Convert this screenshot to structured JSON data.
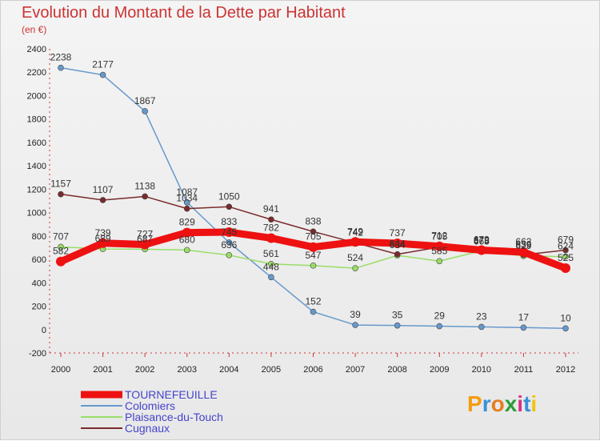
{
  "title": "Evolution du Montant de la Dette par Habitant",
  "subtitle": "(en €)",
  "logo_text": "Proxiti",
  "chart_data": {
    "type": "line",
    "x": [
      "2000",
      "2001",
      "2002",
      "2003",
      "2004",
      "2005",
      "2006",
      "2007",
      "2008",
      "2009",
      "2010",
      "2011",
      "2012"
    ],
    "ylim": [
      -200,
      2400
    ],
    "yticks": [
      -200,
      0,
      200,
      400,
      600,
      800,
      1000,
      1200,
      1400,
      1600,
      1800,
      2000,
      2200,
      2400
    ],
    "grid": false,
    "legend_position": "bottom-left",
    "series": [
      {
        "name": "TOURNEFEUILLE",
        "color": "#ee1111",
        "values": [
          582,
          739,
          727,
          829,
          833,
          782,
          705,
          749,
          737,
          712,
          679,
          662,
          525
        ]
      },
      {
        "name": "Colomiers",
        "color": "#6699cc",
        "values": [
          2238,
          2177,
          1867,
          1087,
          745,
          448,
          152,
          39,
          35,
          29,
          23,
          17,
          10
        ]
      },
      {
        "name": "Plaisance-du-Touch",
        "color": "#99dd66",
        "values": [
          707,
          689,
          687,
          680,
          636,
          561,
          547,
          524,
          634,
          585,
          673,
          629,
          624
        ]
      },
      {
        "name": "Cugnaux",
        "color": "#7a2a2a",
        "values": [
          1157,
          1107,
          1138,
          1034,
          1050,
          941,
          838,
          742,
          644,
          705,
          665,
          639,
          679
        ]
      }
    ]
  }
}
